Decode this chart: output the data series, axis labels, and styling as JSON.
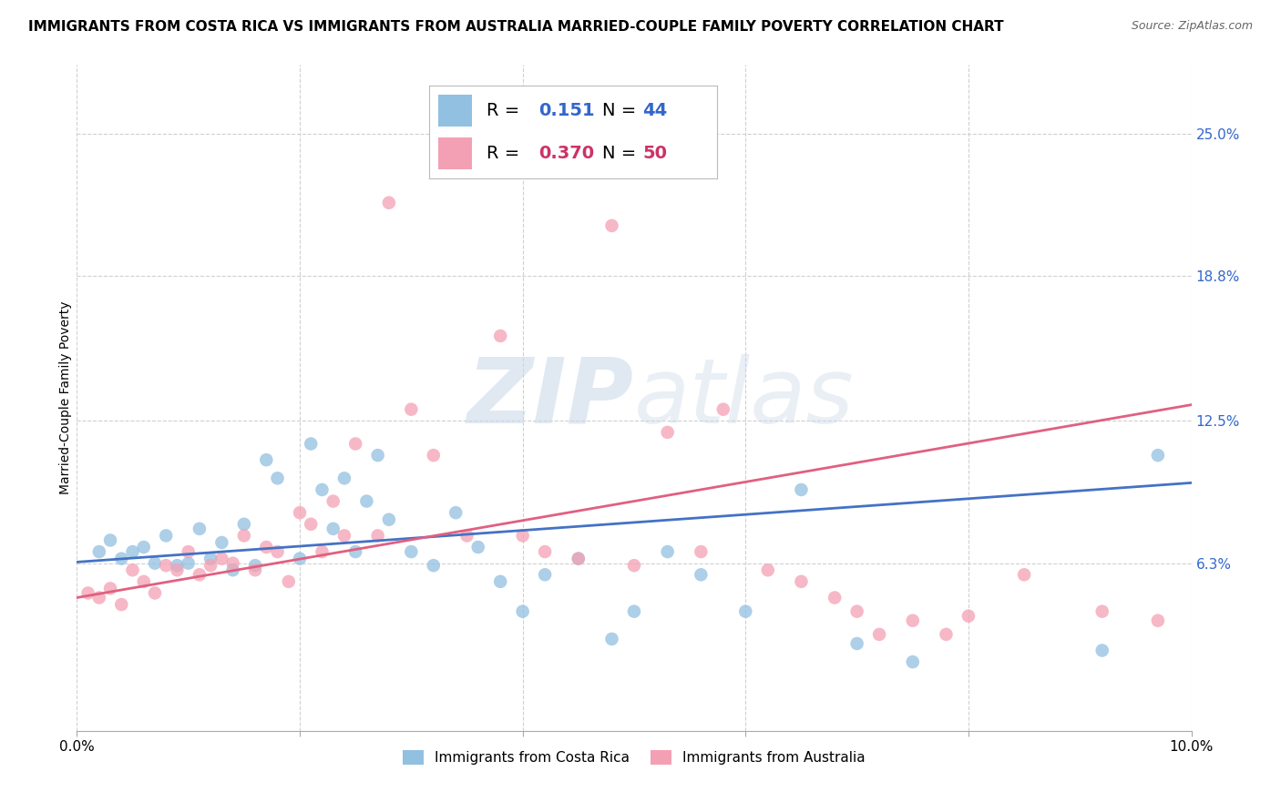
{
  "title": "IMMIGRANTS FROM COSTA RICA VS IMMIGRANTS FROM AUSTRALIA MARRIED-COUPLE FAMILY POVERTY CORRELATION CHART",
  "source": "Source: ZipAtlas.com",
  "ylabel": "Married-Couple Family Poverty",
  "xlim": [
    0.0,
    0.1
  ],
  "ylim": [
    -0.01,
    0.28
  ],
  "ytick_labels": [
    "6.3%",
    "12.5%",
    "18.8%",
    "25.0%"
  ],
  "ytick_positions": [
    0.063,
    0.125,
    0.188,
    0.25
  ],
  "grid_color": "#d0d0d0",
  "background_color": "#ffffff",
  "series": [
    {
      "name": "Immigrants from Costa Rica",
      "color": "#92c0e0",
      "dot_color": "#92c0e0",
      "line_color": "#4472c4",
      "R": "0.151",
      "N": 44,
      "x": [
        0.002,
        0.003,
        0.004,
        0.005,
        0.006,
        0.007,
        0.008,
        0.009,
        0.01,
        0.011,
        0.012,
        0.013,
        0.014,
        0.015,
        0.016,
        0.017,
        0.018,
        0.02,
        0.021,
        0.022,
        0.023,
        0.024,
        0.025,
        0.026,
        0.027,
        0.028,
        0.03,
        0.032,
        0.034,
        0.036,
        0.038,
        0.04,
        0.042,
        0.045,
        0.048,
        0.05,
        0.053,
        0.056,
        0.06,
        0.065,
        0.07,
        0.075,
        0.092,
        0.097
      ],
      "y": [
        0.068,
        0.073,
        0.065,
        0.068,
        0.07,
        0.063,
        0.075,
        0.062,
        0.063,
        0.078,
        0.065,
        0.072,
        0.06,
        0.08,
        0.062,
        0.108,
        0.1,
        0.065,
        0.115,
        0.095,
        0.078,
        0.1,
        0.068,
        0.09,
        0.11,
        0.082,
        0.068,
        0.062,
        0.085,
        0.07,
        0.055,
        0.042,
        0.058,
        0.065,
        0.03,
        0.042,
        0.068,
        0.058,
        0.042,
        0.095,
        0.028,
        0.02,
        0.025,
        0.11
      ],
      "trend_x": [
        0.0,
        0.1
      ],
      "trend_y": [
        0.0635,
        0.098
      ]
    },
    {
      "name": "Immigrants from Australia",
      "color": "#f4a0b4",
      "dot_color": "#f4a0b4",
      "line_color": "#e06080",
      "R": "0.370",
      "N": 50,
      "x": [
        0.001,
        0.002,
        0.003,
        0.004,
        0.005,
        0.006,
        0.007,
        0.008,
        0.009,
        0.01,
        0.011,
        0.012,
        0.013,
        0.014,
        0.015,
        0.016,
        0.017,
        0.018,
        0.019,
        0.02,
        0.021,
        0.022,
        0.023,
        0.024,
        0.025,
        0.027,
        0.028,
        0.03,
        0.032,
        0.035,
        0.038,
        0.04,
        0.042,
        0.045,
        0.048,
        0.05,
        0.053,
        0.056,
        0.058,
        0.062,
        0.065,
        0.068,
        0.07,
        0.072,
        0.075,
        0.078,
        0.08,
        0.085,
        0.092,
        0.097
      ],
      "y": [
        0.05,
        0.048,
        0.052,
        0.045,
        0.06,
        0.055,
        0.05,
        0.062,
        0.06,
        0.068,
        0.058,
        0.062,
        0.065,
        0.063,
        0.075,
        0.06,
        0.07,
        0.068,
        0.055,
        0.085,
        0.08,
        0.068,
        0.09,
        0.075,
        0.115,
        0.075,
        0.22,
        0.13,
        0.11,
        0.075,
        0.162,
        0.075,
        0.068,
        0.065,
        0.21,
        0.062,
        0.12,
        0.068,
        0.13,
        0.06,
        0.055,
        0.048,
        0.042,
        0.032,
        0.038,
        0.032,
        0.04,
        0.058,
        0.042,
        0.038
      ],
      "trend_x": [
        0.0,
        0.1
      ],
      "trend_y": [
        0.048,
        0.132
      ]
    }
  ],
  "title_fontsize": 11,
  "axis_label_fontsize": 10,
  "tick_fontsize": 11,
  "legend_fontsize": 14,
  "source_fontsize": 9
}
